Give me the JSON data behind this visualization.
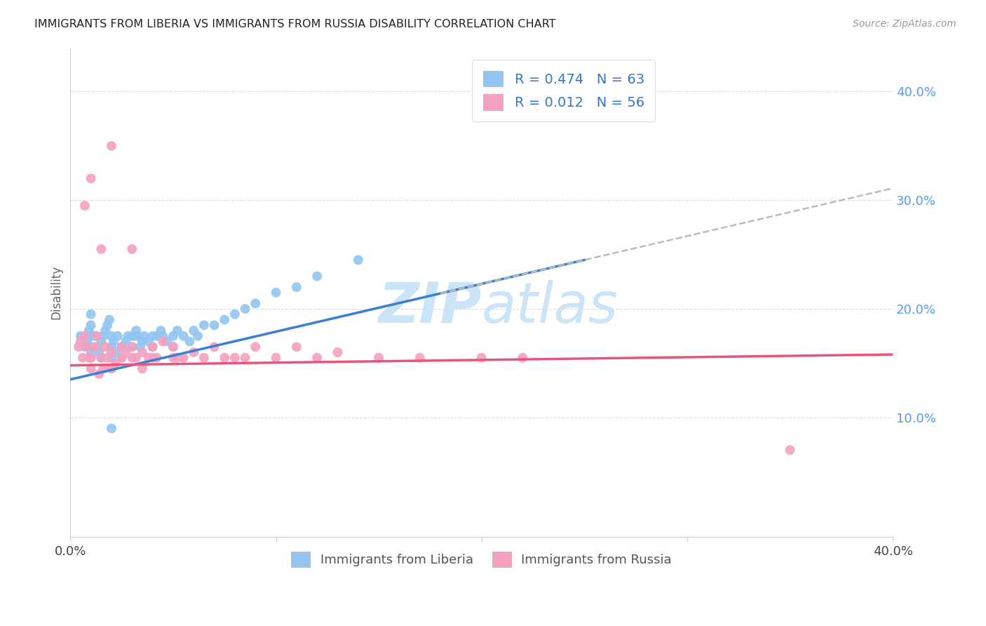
{
  "title": "IMMIGRANTS FROM LIBERIA VS IMMIGRANTS FROM RUSSIA DISABILITY CORRELATION CHART",
  "source": "Source: ZipAtlas.com",
  "ylabel": "Disability",
  "right_yticks": [
    "40.0%",
    "30.0%",
    "20.0%",
    "10.0%"
  ],
  "right_ytick_vals": [
    0.4,
    0.3,
    0.2,
    0.1
  ],
  "xlim": [
    0.0,
    0.4
  ],
  "ylim": [
    -0.01,
    0.44
  ],
  "liberia_R": 0.474,
  "liberia_N": 63,
  "russia_R": 0.012,
  "russia_N": 56,
  "liberia_color": "#92c5f0",
  "russia_color": "#f5a0c0",
  "liberia_line_color": "#3a7fd4",
  "russia_line_color": "#e8557a",
  "dash_color": "#bbbbbb",
  "watermark_color": "#cce4f7",
  "liberia_x": [
    0.005,
    0.007,
    0.008,
    0.009,
    0.01,
    0.01,
    0.01,
    0.01,
    0.01,
    0.01,
    0.012,
    0.013,
    0.014,
    0.015,
    0.015,
    0.016,
    0.017,
    0.018,
    0.019,
    0.02,
    0.02,
    0.02,
    0.02,
    0.021,
    0.022,
    0.023,
    0.025,
    0.025,
    0.027,
    0.028,
    0.03,
    0.03,
    0.031,
    0.032,
    0.033,
    0.034,
    0.035,
    0.036,
    0.038,
    0.04,
    0.04,
    0.042,
    0.044,
    0.045,
    0.047,
    0.05,
    0.05,
    0.052,
    0.055,
    0.058,
    0.06,
    0.062,
    0.065,
    0.07,
    0.075,
    0.08,
    0.085,
    0.09,
    0.1,
    0.11,
    0.12,
    0.14,
    0.02
  ],
  "liberia_y": [
    0.175,
    0.165,
    0.17,
    0.18,
    0.155,
    0.16,
    0.165,
    0.175,
    0.185,
    0.195,
    0.175,
    0.165,
    0.16,
    0.155,
    0.17,
    0.175,
    0.18,
    0.185,
    0.19,
    0.175,
    0.165,
    0.155,
    0.145,
    0.17,
    0.16,
    0.175,
    0.165,
    0.155,
    0.17,
    0.175,
    0.175,
    0.165,
    0.175,
    0.18,
    0.175,
    0.165,
    0.17,
    0.175,
    0.17,
    0.175,
    0.165,
    0.175,
    0.18,
    0.175,
    0.17,
    0.175,
    0.165,
    0.18,
    0.175,
    0.17,
    0.18,
    0.175,
    0.185,
    0.185,
    0.19,
    0.195,
    0.2,
    0.205,
    0.215,
    0.22,
    0.23,
    0.245,
    0.09
  ],
  "russia_x": [
    0.004,
    0.005,
    0.006,
    0.007,
    0.008,
    0.009,
    0.01,
    0.01,
    0.012,
    0.013,
    0.014,
    0.015,
    0.016,
    0.017,
    0.018,
    0.02,
    0.02,
    0.022,
    0.025,
    0.025,
    0.027,
    0.03,
    0.03,
    0.032,
    0.035,
    0.035,
    0.038,
    0.04,
    0.04,
    0.042,
    0.045,
    0.05,
    0.05,
    0.052,
    0.055,
    0.06,
    0.065,
    0.07,
    0.075,
    0.08,
    0.085,
    0.09,
    0.1,
    0.11,
    0.12,
    0.13,
    0.15,
    0.17,
    0.2,
    0.22,
    0.007,
    0.01,
    0.015,
    0.02,
    0.03,
    0.35
  ],
  "russia_y": [
    0.165,
    0.17,
    0.155,
    0.175,
    0.165,
    0.155,
    0.145,
    0.155,
    0.165,
    0.175,
    0.14,
    0.155,
    0.145,
    0.165,
    0.155,
    0.145,
    0.16,
    0.15,
    0.155,
    0.165,
    0.16,
    0.155,
    0.165,
    0.155,
    0.16,
    0.145,
    0.155,
    0.155,
    0.165,
    0.155,
    0.17,
    0.155,
    0.165,
    0.155,
    0.155,
    0.16,
    0.155,
    0.165,
    0.155,
    0.155,
    0.155,
    0.165,
    0.155,
    0.165,
    0.155,
    0.16,
    0.155,
    0.155,
    0.155,
    0.155,
    0.295,
    0.32,
    0.255,
    0.35,
    0.255,
    0.07
  ]
}
